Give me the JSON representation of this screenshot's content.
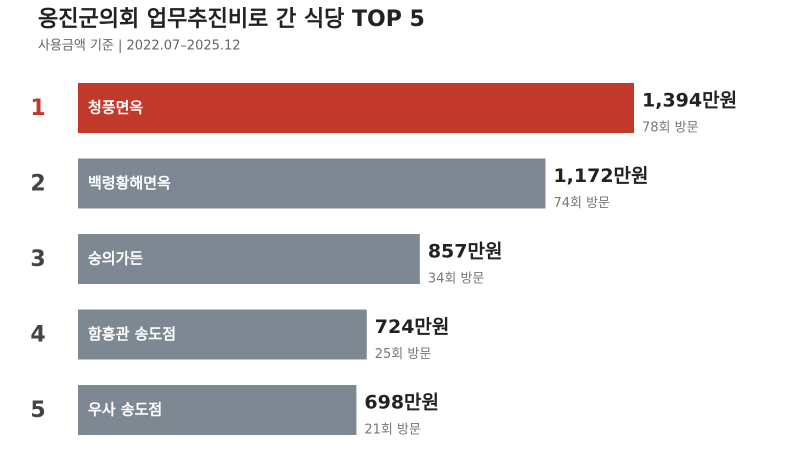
{
  "chart_data": {
    "type": "hbar",
    "title": "옹진군의회 업무추진비로 간 식당 TOP 5",
    "subtitle": "사용금액 기준 | 2022.07–2025.12",
    "ranks": [
      1,
      2,
      3,
      4,
      5
    ],
    "categories": [
      "청풍면옥",
      "백령황해면옥",
      "숭의가든",
      "함흥관 송도점",
      "우사 송도점"
    ],
    "values": [
      1394,
      1172,
      857,
      724,
      698
    ],
    "value_labels": [
      "1,394만원",
      "1,172만원",
      "857만원",
      "724만원",
      "698만원"
    ],
    "notes": [
      "78회 방문",
      "74회 방문",
      "34회 방문",
      "25회 방문",
      "21회 방문"
    ],
    "color": "#7d8893",
    "highlight_color": "#c0392b"
  }
}
